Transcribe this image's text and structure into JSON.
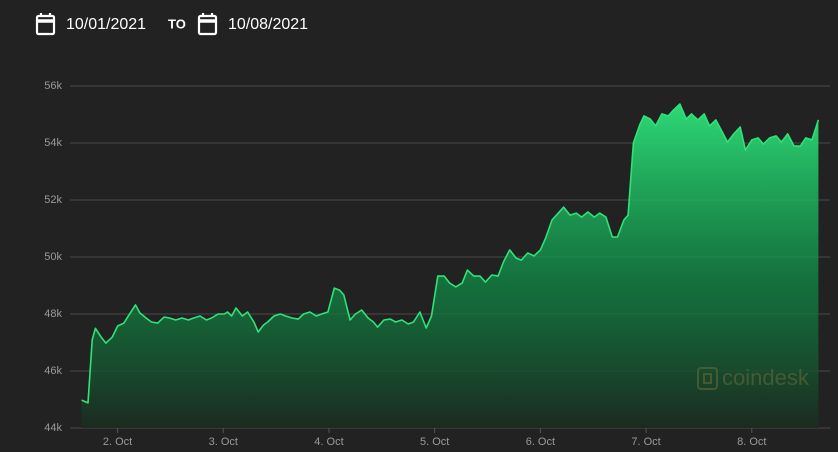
{
  "header": {
    "start_date": "10/01/2021",
    "separator": "TO",
    "end_date": "10/08/2021"
  },
  "chart_data": {
    "type": "area",
    "color": "#2ee37a",
    "watermark": "coindesk",
    "grid": true,
    "xlim": [
      1.55,
      8.74
    ],
    "xticks": [
      {
        "value": 2,
        "label": "2. Oct"
      },
      {
        "value": 3,
        "label": "3. Oct"
      },
      {
        "value": 4,
        "label": "4. Oct"
      },
      {
        "value": 5,
        "label": "5. Oct"
      },
      {
        "value": 6,
        "label": "6. Oct"
      },
      {
        "value": 7,
        "label": "7. Oct"
      },
      {
        "value": 8,
        "label": "8. Oct"
      }
    ],
    "ylim": [
      44000,
      56000
    ],
    "yticks": [
      {
        "value": 44000,
        "label": "44k"
      },
      {
        "value": 46000,
        "label": "46k"
      },
      {
        "value": 48000,
        "label": "48k"
      },
      {
        "value": 50000,
        "label": "50k"
      },
      {
        "value": 52000,
        "label": "52k"
      },
      {
        "value": 54000,
        "label": "54k"
      },
      {
        "value": 56000,
        "label": "56k"
      }
    ],
    "x": [
      1.66,
      1.72,
      1.76,
      1.79,
      1.85,
      1.89,
      1.95,
      2.0,
      2.06,
      2.12,
      2.17,
      2.21,
      2.27,
      2.32,
      2.38,
      2.44,
      2.49,
      2.55,
      2.61,
      2.67,
      2.72,
      2.78,
      2.84,
      2.89,
      2.95,
      3.01,
      3.04,
      3.08,
      3.12,
      3.18,
      3.23,
      3.29,
      3.33,
      3.38,
      3.42,
      3.48,
      3.54,
      3.59,
      3.65,
      3.71,
      3.76,
      3.82,
      3.88,
      3.93,
      3.99,
      4.05,
      4.1,
      4.14,
      4.2,
      4.25,
      4.31,
      4.37,
      4.42,
      4.46,
      4.52,
      4.58,
      4.63,
      4.69,
      4.75,
      4.8,
      4.86,
      4.92,
      4.97,
      5.03,
      5.09,
      5.14,
      5.2,
      5.26,
      5.31,
      5.37,
      5.43,
      5.48,
      5.54,
      5.6,
      5.65,
      5.71,
      5.77,
      5.82,
      5.88,
      5.94,
      6.0,
      6.05,
      6.11,
      6.17,
      6.22,
      6.28,
      6.34,
      6.39,
      6.45,
      6.51,
      6.56,
      6.62,
      6.68,
      6.73,
      6.79,
      6.83,
      6.88,
      6.94,
      6.98,
      7.04,
      7.09,
      7.15,
      7.21,
      7.26,
      7.32,
      7.38,
      7.43,
      7.49,
      7.55,
      7.6,
      7.66,
      7.72,
      7.77,
      7.83,
      7.89,
      7.94,
      8.0,
      8.06,
      8.11,
      8.17,
      8.23,
      8.28,
      8.34,
      8.4,
      8.46,
      8.51,
      8.57,
      8.63
    ],
    "values": [
      44980,
      44880,
      47090,
      47500,
      47160,
      46980,
      47190,
      47580,
      47680,
      48040,
      48320,
      48040,
      47860,
      47720,
      47680,
      47890,
      47860,
      47790,
      47860,
      47790,
      47860,
      47930,
      47790,
      47860,
      48000,
      48000,
      48070,
      47930,
      48210,
      47930,
      48070,
      47720,
      47370,
      47610,
      47720,
      47930,
      48000,
      47930,
      47860,
      47820,
      48000,
      48070,
      47930,
      48000,
      48070,
      48910,
      48840,
      48670,
      47790,
      48000,
      48140,
      47860,
      47720,
      47540,
      47790,
      47820,
      47720,
      47790,
      47650,
      47720,
      48070,
      47510,
      47930,
      49330,
      49330,
      49090,
      48950,
      49090,
      49540,
      49330,
      49330,
      49120,
      49370,
      49330,
      49820,
      50250,
      49960,
      49890,
      50140,
      50040,
      50250,
      50670,
      51300,
      51540,
      51750,
      51470,
      51540,
      51400,
      51580,
      51400,
      51540,
      51400,
      50700,
      50700,
      51300,
      51470,
      54000,
      54630,
      54950,
      54840,
      54600,
      55020,
      54950,
      55160,
      55370,
      54840,
      55020,
      54810,
      55020,
      54600,
      54810,
      54390,
      54030,
      54320,
      54560,
      53750,
      54110,
      54180,
      53960,
      54180,
      54250,
      54030,
      54320,
      53890,
      53890,
      54180,
      54110,
      54810
    ]
  }
}
